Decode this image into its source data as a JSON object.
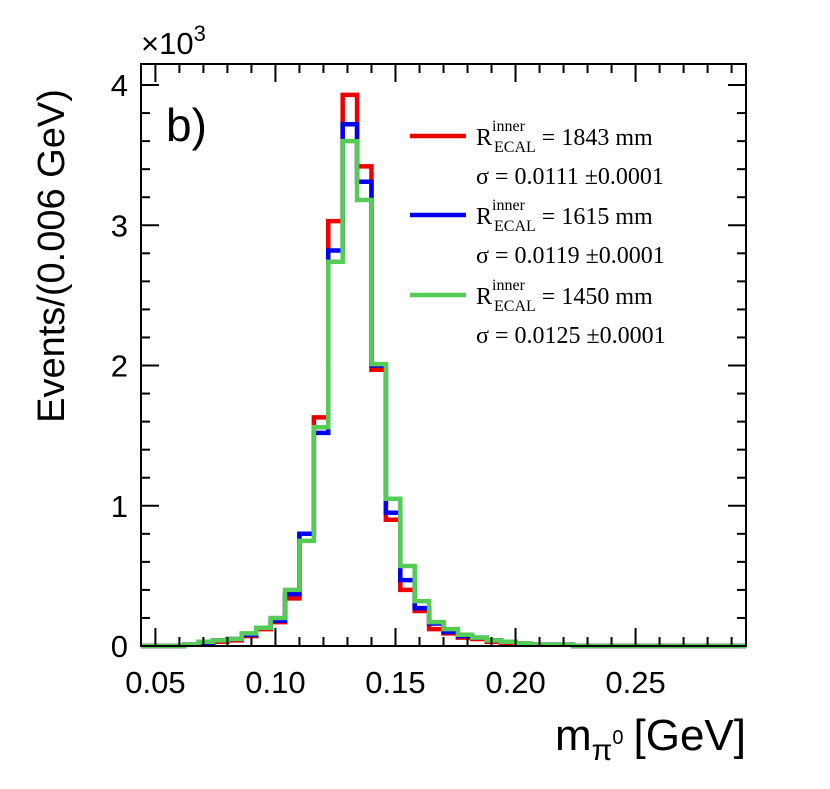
{
  "chart_data": {
    "type": "histogram",
    "panel_label": "b)",
    "xlabel_main": "m",
    "xlabel_sub": "π",
    "xlabel_sup": "0",
    "xlabel_unit": "[GeV]",
    "ylabel": "Events/(0.006 GeV)",
    "y_multiplier_base": "×10",
    "y_multiplier_exp": "3",
    "xlim": [
      0.044,
      0.296
    ],
    "ylim": [
      0,
      4.15
    ],
    "x_major_ticks": [
      0.05,
      0.1,
      0.15,
      0.2,
      0.25
    ],
    "x_tick_labels": [
      "0.05",
      "0.10",
      "0.15",
      "0.20",
      "0.25"
    ],
    "y_major_ticks": [
      0,
      1,
      2,
      3,
      4
    ],
    "y_tick_labels": [
      "0",
      "1",
      "2",
      "3",
      "4"
    ],
    "bin_edges": [
      0.044,
      0.05,
      0.056,
      0.062,
      0.068,
      0.074,
      0.08,
      0.086,
      0.092,
      0.098,
      0.104,
      0.11,
      0.116,
      0.122,
      0.128,
      0.134,
      0.14,
      0.146,
      0.152,
      0.158,
      0.164,
      0.17,
      0.176,
      0.182,
      0.188,
      0.194,
      0.2,
      0.206,
      0.212,
      0.218,
      0.224,
      0.23,
      0.236,
      0.242,
      0.248,
      0.254,
      0.26,
      0.266,
      0.272,
      0.278,
      0.284,
      0.29,
      0.296
    ],
    "series": [
      {
        "name": "R_ECAL^inner = 1843 mm",
        "color": "#ee0000",
        "values": [
          0.0,
          0.0,
          0.0,
          0.01,
          0.02,
          0.03,
          0.04,
          0.07,
          0.12,
          0.17,
          0.34,
          0.8,
          1.63,
          3.03,
          3.93,
          3.42,
          1.97,
          0.9,
          0.4,
          0.25,
          0.12,
          0.09,
          0.06,
          0.05,
          0.03,
          0.02,
          0.02,
          0.01,
          0.01,
          0.01,
          0.0,
          0.0,
          0.0,
          0.0,
          0.0,
          0.0,
          0.0,
          0.0,
          0.0,
          0.0,
          0.0,
          0.0
        ]
      },
      {
        "name": "R_ECAL^inner = 1615 mm",
        "color": "#0000ee",
        "values": [
          0.0,
          0.0,
          0.0,
          0.01,
          0.02,
          0.04,
          0.05,
          0.08,
          0.13,
          0.18,
          0.37,
          0.8,
          1.52,
          2.82,
          3.72,
          3.31,
          2.0,
          0.95,
          0.47,
          0.27,
          0.16,
          0.1,
          0.07,
          0.06,
          0.04,
          0.03,
          0.02,
          0.01,
          0.01,
          0.01,
          0.0,
          0.0,
          0.0,
          0.0,
          0.0,
          0.0,
          0.0,
          0.0,
          0.0,
          0.0,
          0.0,
          0.0
        ]
      },
      {
        "name": "R_ECAL^inner = 1450 mm",
        "color": "#55cc55",
        "values": [
          0.0,
          0.0,
          0.0,
          0.01,
          0.03,
          0.04,
          0.05,
          0.09,
          0.13,
          0.2,
          0.4,
          0.75,
          1.56,
          2.74,
          3.6,
          3.18,
          2.01,
          1.05,
          0.57,
          0.32,
          0.17,
          0.12,
          0.08,
          0.06,
          0.04,
          0.03,
          0.02,
          0.01,
          0.01,
          0.01,
          0.0,
          0.0,
          0.0,
          0.0,
          0.0,
          0.0,
          0.0,
          0.0,
          0.0,
          0.0,
          0.0,
          0.0
        ]
      }
    ],
    "legend": [
      {
        "color": "#ee0000",
        "R": "R",
        "sup": "inner",
        "sub": "ECAL",
        "value": " = 1843 mm",
        "sigma": "σ = 0.0111  ±0.0001"
      },
      {
        "color": "#0000ee",
        "R": "R",
        "sup": "inner",
        "sub": "ECAL",
        "value": " = 1615 mm",
        "sigma": "σ = 0.0119  ±0.0001"
      },
      {
        "color": "#55cc55",
        "R": "R",
        "sup": "inner",
        "sub": "ECAL",
        "value": " = 1450 mm",
        "sigma": "σ = 0.0125 ±0.0001"
      }
    ],
    "legend_position": "top-right"
  }
}
